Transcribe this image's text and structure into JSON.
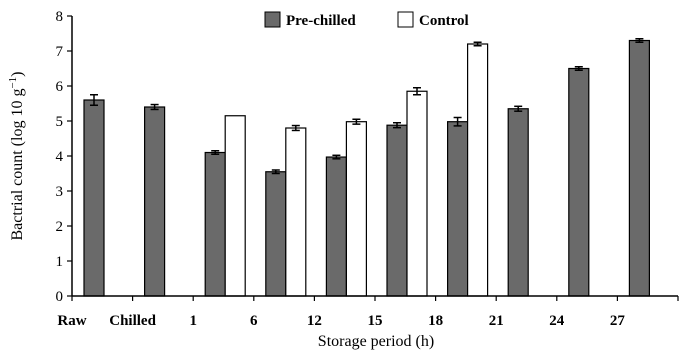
{
  "chart_data": {
    "type": "bar",
    "ylabel": "Bactrial count (log 10 g",
    "ylabel_sup": "−1",
    "ylabel_close": ")",
    "xlabel": "Storage period (h)",
    "ylim": [
      0,
      8
    ],
    "yticks": [
      "0",
      "1",
      "2",
      "3",
      "4",
      "5",
      "6",
      "7",
      "8"
    ],
    "xtick_labels": [
      "Raw",
      "Chilled",
      "1",
      "6",
      "12",
      "15",
      "18",
      "21",
      "24",
      "27"
    ],
    "legend_position": "top-center",
    "series": [
      {
        "name": "Pre-chilled",
        "color": "#6a6a6a",
        "values": [
          5.6,
          5.4,
          4.1,
          3.55,
          3.97,
          4.88,
          4.98,
          5.35,
          6.5,
          7.3
        ],
        "errors": [
          0.15,
          0.07,
          0.05,
          0.05,
          0.05,
          0.07,
          0.12,
          0.07,
          0.05,
          0.05
        ]
      },
      {
        "name": "Control",
        "color": "#ffffff",
        "values": [
          null,
          null,
          5.15,
          4.8,
          4.98,
          5.85,
          7.2,
          null,
          null,
          null
        ],
        "errors": [
          null,
          null,
          0.0,
          0.07,
          0.07,
          0.1,
          0.05,
          null,
          null,
          null
        ]
      }
    ]
  }
}
